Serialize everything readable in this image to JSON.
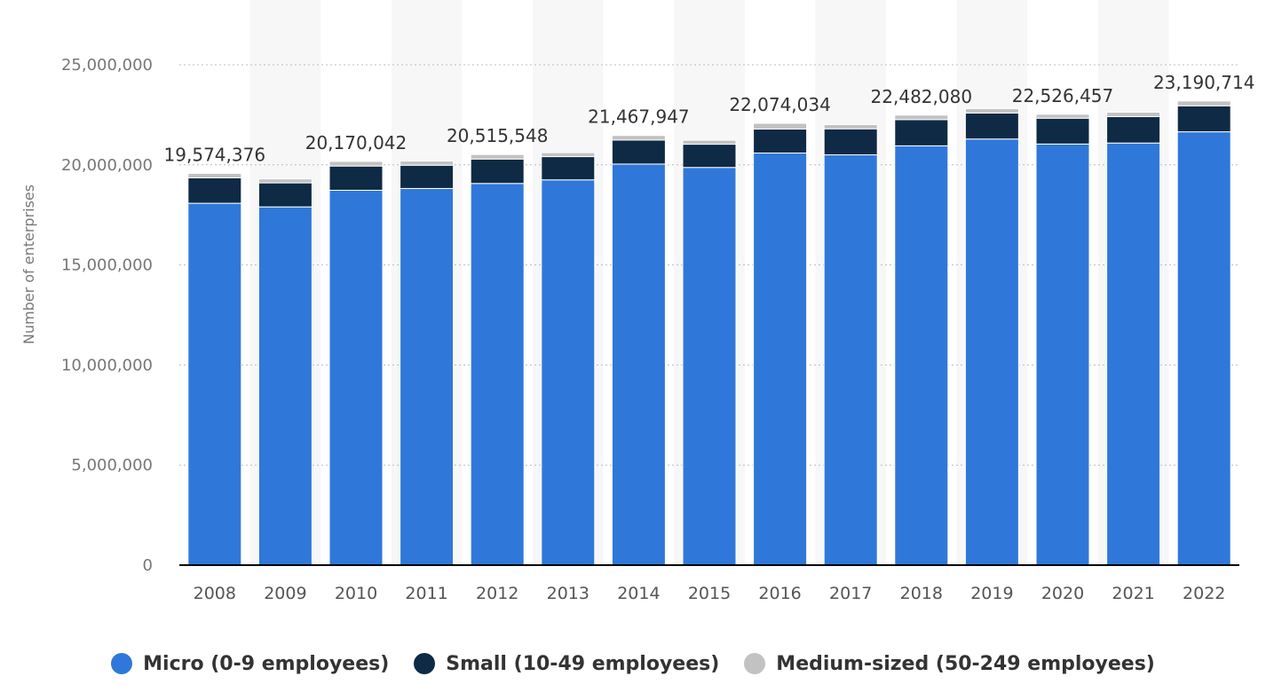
{
  "chart_data": {
    "type": "bar",
    "stacked": true,
    "categories": [
      "2008",
      "2009",
      "2010",
      "2011",
      "2012",
      "2013",
      "2014",
      "2015",
      "2016",
      "2017",
      "2018",
      "2019",
      "2020",
      "2021",
      "2022"
    ],
    "series": [
      {
        "name": "Micro (0-9 employees)",
        "color": "#2f78d9",
        "values": [
          18080000,
          17900000,
          18730000,
          18820000,
          19070000,
          19250000,
          20040000,
          19870000,
          20590000,
          20500000,
          20950000,
          21290000,
          21040000,
          21090000,
          21650000
        ]
      },
      {
        "name": "Small (10-49 employees)",
        "color": "#0f2a44",
        "values": [
          1270000,
          1200000,
          1210000,
          1160000,
          1220000,
          1160000,
          1200000,
          1160000,
          1200000,
          1300000,
          1310000,
          1300000,
          1290000,
          1320000,
          1300000
        ]
      },
      {
        "name": "Medium-sized (50-249 employees)",
        "color": "#c2c2c2",
        "values": [
          224376,
          196000,
          230042,
          210000,
          225548,
          200000,
          227947,
          200000,
          284034,
          210000,
          222080,
          220000,
          196457,
          220000,
          240714
        ]
      }
    ],
    "data_labels": [
      {
        "category": "2008",
        "text": "19,574,376"
      },
      {
        "category": "2010",
        "text": "20,170,042"
      },
      {
        "category": "2012",
        "text": "20,515,548"
      },
      {
        "category": "2014",
        "text": "21,467,947"
      },
      {
        "category": "2016",
        "text": "22,074,034"
      },
      {
        "category": "2018",
        "text": "22,482,080"
      },
      {
        "category": "2020",
        "text": "22,526,457"
      },
      {
        "category": "2022",
        "text": "23,190,714"
      }
    ],
    "ylabel": "Number of enterprises",
    "ylim": [
      0,
      25000000
    ],
    "yticks": [
      0,
      5000000,
      10000000,
      15000000,
      20000000,
      25000000
    ],
    "ytick_labels": [
      "0",
      "5,000,000",
      "10,000,000",
      "15,000,000",
      "20,000,000",
      "25,000,000"
    ],
    "grid": true,
    "legend_position": "bottom"
  }
}
